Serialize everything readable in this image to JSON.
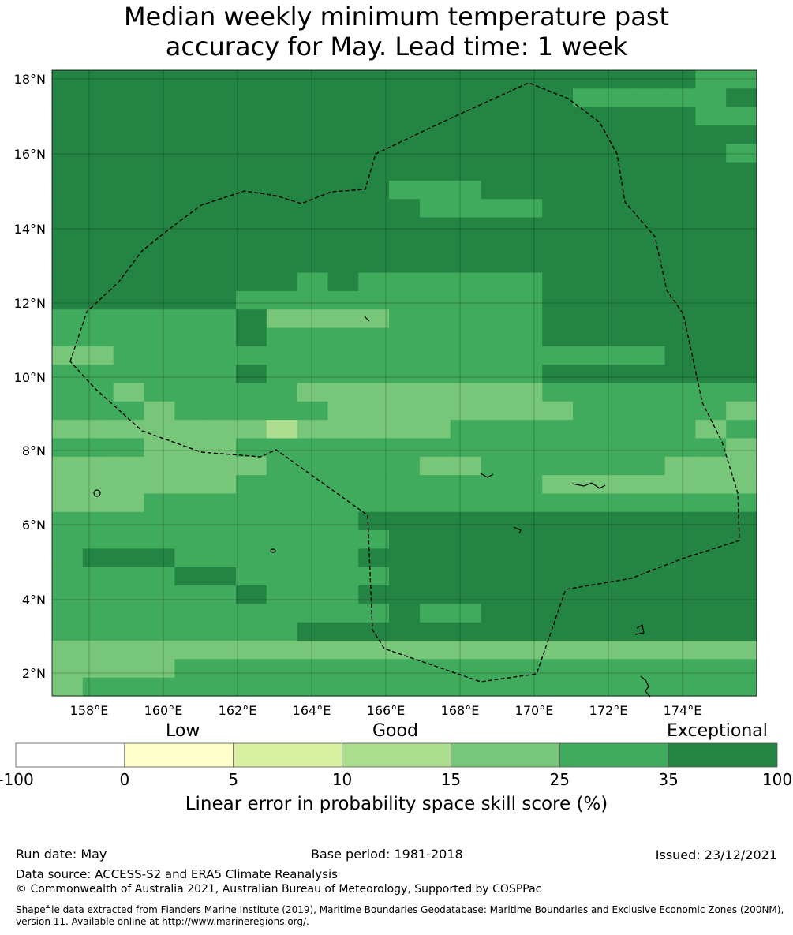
{
  "title": {
    "line1": "Median weekly minimum temperature past",
    "line2": "accuracy for May. Lead time: 1 week"
  },
  "map": {
    "lon_labels": [
      "158°E",
      "160°E",
      "162°E",
      "164°E",
      "166°E",
      "168°E",
      "170°E",
      "172°E",
      "174°E"
    ],
    "lat_labels": [
      "18°N",
      "16°N",
      "14°N",
      "12°N",
      "10°N",
      "8°N",
      "6°N",
      "4°N",
      "2°N"
    ],
    "category_colors": [
      "#ffffff",
      "#ffffcc",
      "#d9f0a3",
      "#addd8e",
      "#78c679",
      "#41ab5d",
      "#238443"
    ],
    "grid_rows": [
      "66666666666666666666655",
      "66666666666666666555556",
      "66666666666666666666655",
      "66666666666666666666666",
      "66666666666666666666665",
      "66666666666666666666666",
      "66666666666555666666666",
      "66666666666655556666666",
      "66666666666666666666666",
      "66666666666666666666666",
      "66666666666666666666666",
      "66666666565555556666666",
      "66666655555555556666666",
      "55555564444555556666666",
      "55555565555555556666666",
      "44555555555555555555666",
      "55555565555555556666666",
      "55455555444444445555555",
      "55545555544444444555554",
      "44444443444445555555545",
      "55544455555555555555554",
      "44444445555544555555444",
      "44444455555555554444444",
      "44455555555555555555555",
      "55555555556666666666666",
      "55555555555666666666666",
      "56665555556666666666666",
      "55556655555666666666666",
      "55555565556666666666666",
      "55555555555655666666666",
      "55555555666666666666666",
      "44444444444444444444444",
      "44445555555555555555555",
      "45555555555555555555555"
    ]
  },
  "legend": {
    "categories": {
      "low": "Low",
      "good": "Good",
      "exceptional": "Exceptional"
    },
    "ticks": [
      "-100",
      "0",
      "5",
      "10",
      "15",
      "25",
      "35",
      "100"
    ],
    "label": "Linear error in probability space skill score (%)"
  },
  "footer": {
    "run_date": "Run date: May",
    "base_period": "Base period: 1981-2018",
    "issued": "Issued: 23/12/2021",
    "data_source": "Data source: ACCESS-S2 and ERA5 Climate Reanalysis",
    "copyright": "© Commonwealth of Australia 2021, Australian Bureau of Meteorology, Supported by COSPPac",
    "shapefile_line1": "Shapefile data extracted from Flanders Marine Institute (2019), Maritime Boundaries Geodatabase: Maritime Boundaries and Exclusive Economic Zones (200NM),",
    "shapefile_line2": "version 11. Available online at http://www.marineregions.org/."
  }
}
